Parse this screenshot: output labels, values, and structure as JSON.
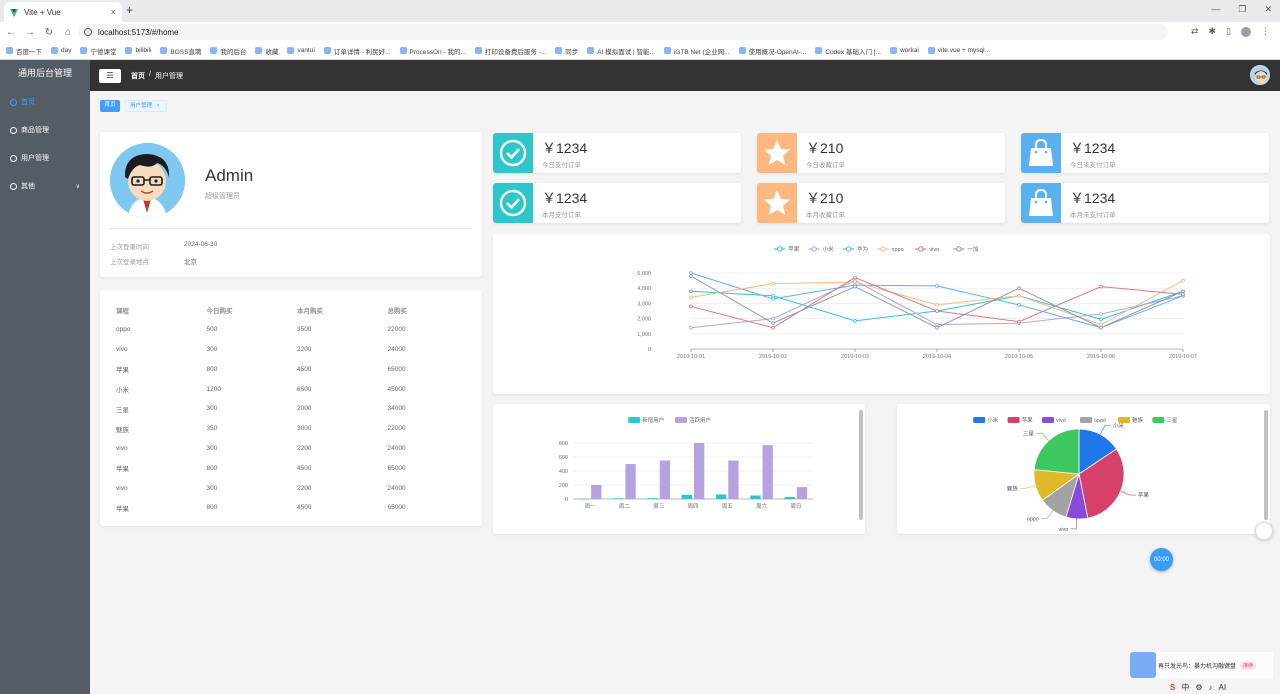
{
  "browser": {
    "tab_title": "Vite + Vue",
    "tab_close": "×",
    "new_tab": "+",
    "url": "localhost:5173/#/home",
    "bookmarks": [
      "百度一下",
      "day",
      "宁德课堂",
      "bilibili",
      "BOSS直聘",
      "我的后台",
      "收藏",
      "vantui",
      "订单详情 - 利民好...",
      "ProcessOn - 我的...",
      "打印设备费后服务 -...",
      "同步",
      "AI 模拟面试 | 智能...",
      "iGTB Net (企业网...",
      "使用概况-OpenAI-...",
      "Codex 基础入门 [...",
      "workai",
      "vite.vue + mysql..."
    ]
  },
  "sidebar": {
    "title": "通用后台管理",
    "items": [
      {
        "label": "首页",
        "active": true
      },
      {
        "label": "商品管理",
        "active": false
      },
      {
        "label": "用户管理",
        "active": false
      },
      {
        "label": "其他",
        "active": false,
        "chevron": "∨"
      }
    ]
  },
  "header": {
    "menu_icon": "☰",
    "breadcrumb_home": "首页",
    "breadcrumb_sep": "/",
    "breadcrumb_current": "用户管理"
  },
  "tags": {
    "home": "首页",
    "user": "用户管理",
    "user_close": "×"
  },
  "profile": {
    "name": "Admin",
    "role": "超级管理员",
    "last_login_time_label": "上次登录时间",
    "last_login_time": "2024-06-30",
    "last_login_place_label": "上次登录地点",
    "last_login_place": "北京"
  },
  "table": {
    "headers": [
      "课程",
      "今日购买",
      "本月购买",
      "总购买"
    ],
    "rows": [
      [
        "oppo",
        "500",
        "3500",
        "22000"
      ],
      [
        "vivo",
        "300",
        "2200",
        "24000"
      ],
      [
        "苹果",
        "800",
        "4500",
        "65000"
      ],
      [
        "小米",
        "1200",
        "6500",
        "45000"
      ],
      [
        "三星",
        "300",
        "2000",
        "34000"
      ],
      [
        "魅族",
        "350",
        "3000",
        "22000"
      ],
      [
        "vivo",
        "300",
        "2200",
        "24000"
      ],
      [
        "苹果",
        "800",
        "4500",
        "65000"
      ],
      [
        "vivo",
        "300",
        "2200",
        "24000"
      ],
      [
        "苹果",
        "800",
        "4500",
        "65000"
      ]
    ]
  },
  "stats": [
    {
      "value": "￥1234",
      "label": "今日支付订单",
      "color": "#2ec7c9",
      "icon": "check-icon"
    },
    {
      "value": "￥210",
      "label": "今日收藏订单",
      "color": "#ffb980",
      "icon": "star-icon"
    },
    {
      "value": "￥1234",
      "label": "今日未支付订单",
      "color": "#5ab1ef",
      "icon": "bag-icon"
    },
    {
      "value": "￥1234",
      "label": "本月支付订单",
      "color": "#2ec7c9",
      "icon": "check-icon"
    },
    {
      "value": "￥210",
      "label": "本月收藏订单",
      "color": "#ffb980",
      "icon": "star-icon"
    },
    {
      "value": "￥1234",
      "label": "本月未支付订单",
      "color": "#5ab1ef",
      "icon": "bag-icon"
    }
  ],
  "chart_data": [
    {
      "type": "line",
      "x": [
        "2019-10-01",
        "2019-10-02",
        "2019-10-03",
        "2019-10-04",
        "2019-10-05",
        "2019-10-06",
        "2019-10-07"
      ],
      "yticks": [
        "0",
        "1,000",
        "2,000",
        "3,000",
        "4,000",
        "5,000"
      ],
      "ylim": [
        0,
        5000
      ],
      "grid": true,
      "legend": "top-center",
      "series": [
        {
          "name": "苹果",
          "color": "#2ec7c9",
          "values": [
            3800,
            3500,
            1850,
            2500,
            3500,
            1950,
            3800
          ]
        },
        {
          "name": "小米",
          "color": "#b6a2de",
          "values": [
            1400,
            2000,
            4500,
            1600,
            1700,
            2300,
            3500
          ]
        },
        {
          "name": "华为",
          "color": "#5ab1ef",
          "values": [
            5000,
            3300,
            4200,
            4150,
            2900,
            1400,
            3500
          ]
        },
        {
          "name": "oppo",
          "color": "#ffb980",
          "values": [
            3400,
            4300,
            4400,
            2900,
            3500,
            1600,
            4500
          ]
        },
        {
          "name": "vivo",
          "color": "#d87a80",
          "values": [
            2800,
            1400,
            4700,
            2500,
            1800,
            4100,
            3600
          ]
        },
        {
          "name": "一加",
          "color": "#8d98b3",
          "values": [
            4800,
            1700,
            4100,
            1400,
            4000,
            1400,
            3800
          ]
        }
      ]
    },
    {
      "type": "bar",
      "categories": [
        "周一",
        "周二",
        "周三",
        "周四",
        "周五",
        "周六",
        "周日"
      ],
      "yticks": [
        "0",
        "200",
        "400",
        "600",
        "800"
      ],
      "ylim": [
        0,
        800
      ],
      "grid": true,
      "legend": "top-center",
      "series": [
        {
          "name": "新增用户",
          "color": "#2ec7c9",
          "values": [
            5,
            10,
            12,
            60,
            65,
            50,
            30
          ]
        },
        {
          "name": "活跃用户",
          "color": "#b6a2de",
          "values": [
            200,
            500,
            550,
            800,
            550,
            770,
            170
          ]
        }
      ]
    },
    {
      "type": "pie",
      "legend": "top-center",
      "slices": [
        {
          "name": "小米",
          "value": 2999,
          "color": "#1f78e8"
        },
        {
          "name": "苹果",
          "value": 5999,
          "color": "#d6406a"
        },
        {
          "name": "vivo",
          "value": 1500,
          "color": "#8a4ad9"
        },
        {
          "name": "oppo",
          "value": 1999,
          "color": "#a3a3a3"
        },
        {
          "name": "魅族",
          "value": 2200,
          "color": "#e0b92a"
        },
        {
          "name": "三星",
          "value": 4500,
          "color": "#3ec860"
        }
      ]
    }
  ],
  "floating": {
    "timer": "00:00"
  },
  "notify": {
    "text": "再只发光鸟：暴力机沟融键盘",
    "tag": "接续"
  },
  "tray": {
    "app": "S",
    "ime": "中",
    "time": "AI"
  }
}
